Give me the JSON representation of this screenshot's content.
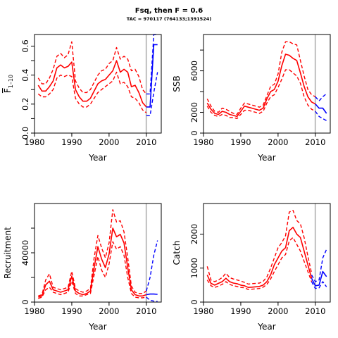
{
  "figure": {
    "title": "Fsq, then F = 0.6",
    "subtitle": "TAC = 970117 (764133;1391524)"
  },
  "colors": {
    "historic": "#ff0000",
    "forecast": "#0000ff",
    "refline": "#bebebe",
    "axis": "#000000"
  },
  "chart_data": [
    {
      "id": "fbar",
      "type": "line",
      "xlabel": "Year",
      "ylabel_main": "F",
      "ylabel_sub": "1–10",
      "xlim": [
        1980,
        2014
      ],
      "ylim": [
        0,
        0.68
      ],
      "xticks": [
        1980,
        1990,
        2000,
        2010
      ],
      "yticks": [
        0.0,
        0.2,
        0.4,
        0.6
      ],
      "yticklabels": [
        "0.0",
        "0.2",
        "0.4",
        "0.6"
      ],
      "minor_yticks": [
        0.1,
        0.3,
        0.5
      ],
      "refline_x": 2010,
      "historic": {
        "x": [
          1981,
          1982,
          1983,
          1984,
          1985,
          1986,
          1987,
          1988,
          1989,
          1990,
          1991,
          1992,
          1993,
          1994,
          1995,
          1996,
          1997,
          1998,
          1999,
          2000,
          2001,
          2002,
          2003,
          2004,
          2005,
          2006,
          2007,
          2008,
          2009,
          2010
        ],
        "mid": [
          0.33,
          0.29,
          0.29,
          0.32,
          0.36,
          0.45,
          0.47,
          0.45,
          0.46,
          0.49,
          0.3,
          0.25,
          0.22,
          0.22,
          0.24,
          0.29,
          0.34,
          0.36,
          0.37,
          0.4,
          0.43,
          0.5,
          0.42,
          0.44,
          0.42,
          0.32,
          0.33,
          0.28,
          0.21,
          0.18
        ],
        "low": [
          0.27,
          0.25,
          0.25,
          0.27,
          0.3,
          0.38,
          0.4,
          0.39,
          0.4,
          0.39,
          0.24,
          0.2,
          0.18,
          0.18,
          0.2,
          0.24,
          0.28,
          0.3,
          0.32,
          0.34,
          0.36,
          0.42,
          0.34,
          0.35,
          0.32,
          0.25,
          0.24,
          0.21,
          0.16,
          0.14
        ],
        "high": [
          0.38,
          0.34,
          0.34,
          0.38,
          0.44,
          0.53,
          0.55,
          0.52,
          0.54,
          0.63,
          0.36,
          0.31,
          0.28,
          0.28,
          0.3,
          0.35,
          0.4,
          0.43,
          0.44,
          0.48,
          0.5,
          0.59,
          0.51,
          0.53,
          0.51,
          0.43,
          0.44,
          0.39,
          0.3,
          0.27
        ]
      },
      "forecast": {
        "x": [
          2010,
          2011,
          2012,
          2013
        ],
        "mid": [
          0.18,
          0.18,
          0.61,
          0.61
        ],
        "low": [
          0.12,
          0.12,
          0.28,
          0.42
        ],
        "high": [
          0.27,
          0.27,
          0.68,
          0.68
        ]
      }
    },
    {
      "id": "ssb",
      "type": "line",
      "xlabel": "Year",
      "ylabel_main": "SSB",
      "ylabel_sub": "",
      "xlim": [
        1980,
        2014
      ],
      "ylim": [
        0,
        9500
      ],
      "xticks": [
        1980,
        1990,
        2000,
        2010
      ],
      "yticks": [
        0,
        2000,
        4000,
        6000,
        8000
      ],
      "yticklabels": [
        "0",
        "2000",
        "",
        "6000",
        ""
      ],
      "minor_yticks": [],
      "refline_x": 2010,
      "historic": {
        "x": [
          1981,
          1982,
          1983,
          1984,
          1985,
          1986,
          1987,
          1988,
          1989,
          1990,
          1991,
          1992,
          1993,
          1994,
          1995,
          1996,
          1997,
          1998,
          1999,
          2000,
          2001,
          2002,
          2003,
          2004,
          2005,
          2006,
          2007,
          2008,
          2009,
          2010
        ],
        "mid": [
          2900,
          2300,
          1900,
          1800,
          2100,
          2000,
          1800,
          1700,
          1600,
          2100,
          2600,
          2500,
          2400,
          2300,
          2200,
          2400,
          3300,
          4000,
          4200,
          5000,
          6500,
          7600,
          7500,
          7200,
          7000,
          5800,
          4500,
          3500,
          3000,
          2800
        ],
        "low": [
          2600,
          2000,
          1700,
          1600,
          1800,
          1700,
          1500,
          1500,
          1400,
          1800,
          2200,
          2200,
          2100,
          2000,
          1900,
          2100,
          2900,
          3500,
          3700,
          4400,
          5200,
          6100,
          6100,
          5800,
          5500,
          4800,
          3500,
          2700,
          2300,
          2100
        ],
        "high": [
          3300,
          2600,
          2100,
          2000,
          2400,
          2300,
          2100,
          1900,
          1800,
          2400,
          2900,
          2800,
          2700,
          2600,
          2500,
          2700,
          3600,
          4500,
          4700,
          5700,
          7800,
          8800,
          8800,
          8600,
          8500,
          7000,
          5500,
          4200,
          3700,
          3500
        ]
      },
      "forecast": {
        "x": [
          2010,
          2011,
          2012,
          2013
        ],
        "mid": [
          2800,
          2400,
          2400,
          1900
        ],
        "low": [
          2100,
          1600,
          1400,
          1200
        ],
        "high": [
          3500,
          3100,
          3500,
          3800
        ]
      }
    },
    {
      "id": "recruitment",
      "type": "line",
      "xlabel": "Year",
      "ylabel_main": "Recruitment",
      "ylabel_sub": "",
      "xlim": [
        1980,
        2014
      ],
      "ylim": [
        0,
        80000
      ],
      "xticks": [
        1980,
        1990,
        2000,
        2010
      ],
      "yticks": [
        0,
        20000,
        40000,
        60000
      ],
      "yticklabels": [
        "0",
        "",
        "40000",
        ""
      ],
      "minor_yticks": [],
      "refline_x": 2010,
      "historic": {
        "x": [
          1981,
          1982,
          1983,
          1984,
          1985,
          1986,
          1987,
          1988,
          1989,
          1990,
          1991,
          1992,
          1993,
          1994,
          1995,
          1996,
          1997,
          1998,
          1999,
          2000,
          2001,
          2002,
          2003,
          2004,
          2005,
          2006,
          2007,
          2008,
          2009,
          2010
        ],
        "mid": [
          4000,
          5000,
          14000,
          17000,
          10000,
          9000,
          8000,
          9000,
          10000,
          21000,
          9000,
          7000,
          6000,
          7000,
          9000,
          28000,
          45000,
          35000,
          28000,
          39000,
          60000,
          53000,
          55000,
          48000,
          28000,
          10000,
          6000,
          5000,
          5000,
          6000
        ],
        "low": [
          3000,
          4000,
          10000,
          12000,
          8000,
          7000,
          6000,
          7000,
          8000,
          17000,
          7000,
          5000,
          5000,
          6000,
          7000,
          22000,
          37000,
          26000,
          20000,
          31000,
          49000,
          43000,
          45000,
          38000,
          20000,
          7000,
          4000,
          3500,
          3500,
          4000
        ],
        "high": [
          5000,
          6000,
          18000,
          23000,
          12000,
          11000,
          10000,
          11000,
          12000,
          25000,
          11000,
          9000,
          8000,
          9000,
          11000,
          36000,
          54000,
          44000,
          36000,
          48000,
          75000,
          65000,
          66000,
          57000,
          36000,
          13000,
          8000,
          7000,
          7000,
          9000
        ]
      },
      "forecast": {
        "x": [
          2010,
          2011,
          2012,
          2013
        ],
        "mid": [
          6000,
          6500,
          6500,
          6300
        ],
        "low": [
          4000,
          1500,
          800,
          500
        ],
        "high": [
          9000,
          20000,
          38000,
          50000
        ]
      }
    },
    {
      "id": "catch",
      "type": "line",
      "xlabel": "Year",
      "ylabel_main": "Catch",
      "ylabel_sub": "",
      "xlim": [
        1980,
        2014
      ],
      "ylim": [
        0,
        2900
      ],
      "xticks": [
        1980,
        1990,
        2000,
        2010
      ],
      "yticks": [
        0,
        1000,
        2000
      ],
      "yticklabels": [
        "0",
        "1000",
        "2000"
      ],
      "minor_yticks": [],
      "refline_x": 2010,
      "historic": {
        "x": [
          1981,
          1982,
          1983,
          1984,
          1985,
          1986,
          1987,
          1988,
          1989,
          1990,
          1991,
          1992,
          1993,
          1994,
          1995,
          1996,
          1997,
          1998,
          1999,
          2000,
          2001,
          2002,
          2003,
          2004,
          2005,
          2006,
          2007,
          2008,
          2009
        ],
        "mid": [
          800,
          550,
          500,
          550,
          600,
          700,
          600,
          560,
          540,
          500,
          480,
          430,
          440,
          450,
          460,
          500,
          600,
          800,
          1100,
          1300,
          1500,
          1600,
          2100,
          2200,
          2000,
          1900,
          1500,
          1100,
          700
        ],
        "low": [
          650,
          480,
          430,
          470,
          520,
          600,
          520,
          480,
          460,
          430,
          420,
          370,
          380,
          390,
          400,
          440,
          520,
          680,
          900,
          1100,
          1300,
          1400,
          1800,
          1900,
          1700,
          1500,
          1200,
          900,
          600
        ],
        "high": [
          1050,
          650,
          600,
          650,
          720,
          850,
          720,
          680,
          650,
          620,
          580,
          530,
          540,
          550,
          560,
          610,
          740,
          1000,
          1300,
          1600,
          1750,
          1950,
          2650,
          2700,
          2400,
          2300,
          1900,
          1350,
          850
        ]
      },
      "forecast": {
        "x": [
          2009,
          2010,
          2011,
          2012,
          2013
        ],
        "mid": [
          700,
          480,
          500,
          900,
          750
        ],
        "low": [
          600,
          400,
          420,
          600,
          450
        ],
        "high": [
          800,
          600,
          650,
          1300,
          1550
        ]
      }
    }
  ]
}
